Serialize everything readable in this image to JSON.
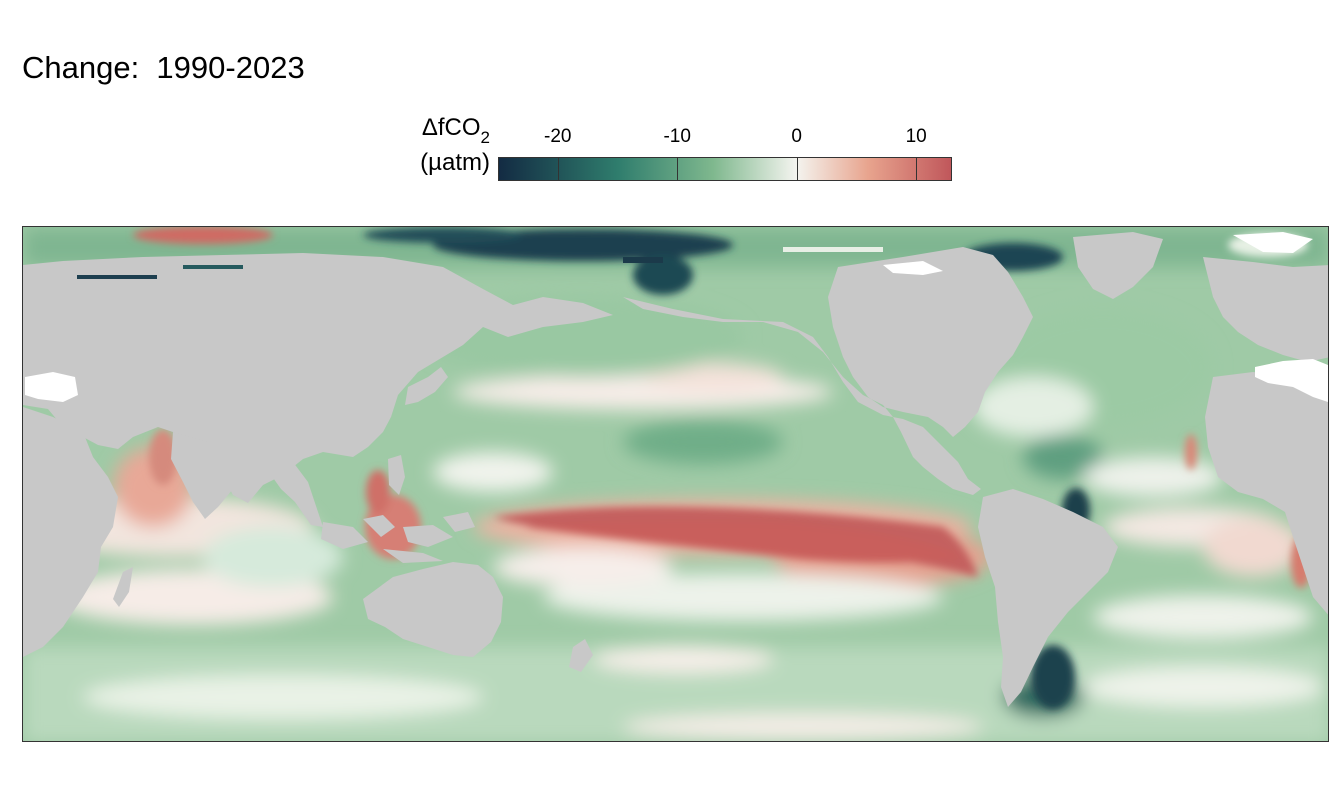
{
  "title": "Change:  1990-2023",
  "legend": {
    "variable": "ΔfCO",
    "variable_subscript": "2",
    "unit": "(µatm)",
    "ticks": [
      "-20",
      "-10",
      "0",
      "10"
    ],
    "tick_values": [
      -20,
      -10,
      0,
      10
    ],
    "range": [
      -25,
      13
    ],
    "colors": {
      "min": "#132b43",
      "low": "#2f7d6d",
      "mid_low": "#7fb88e",
      "zero": "#f4f4ef",
      "mid_high": "#e8a48e",
      "max": "#c0575b"
    }
  },
  "map": {
    "projection": "Pacific-centered equirectangular",
    "land_color": "#c8c8c8",
    "no_data_color": "#ffffff"
  }
}
